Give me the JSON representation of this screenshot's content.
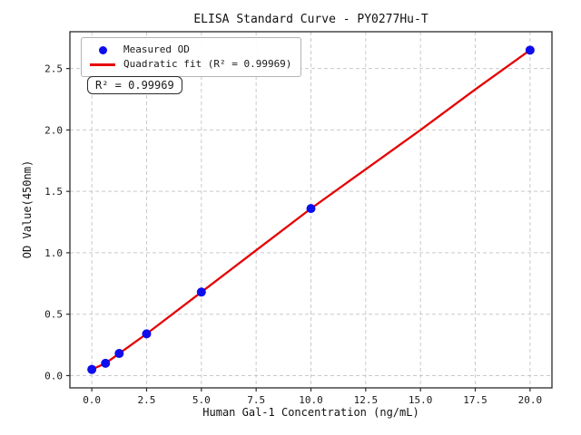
{
  "chart_data": {
    "type": "scatter",
    "title": "ELISA Standard Curve - PY0277Hu-T",
    "xlabel": "Human Gal-1 Concentration (ng/mL)",
    "ylabel": "OD Value(450nm)",
    "xlim": [
      -1,
      21
    ],
    "ylim": [
      -0.1,
      2.8
    ],
    "grid": true,
    "grid_style": "dashed",
    "legend_position": "upper-left",
    "xticks": [
      {
        "value": 0,
        "label": "0.0"
      },
      {
        "value": 2.5,
        "label": "2.5"
      },
      {
        "value": 5,
        "label": "5.0"
      },
      {
        "value": 7.5,
        "label": "7.5"
      },
      {
        "value": 10,
        "label": "10.0"
      },
      {
        "value": 12.5,
        "label": "12.5"
      },
      {
        "value": 15,
        "label": "15.0"
      },
      {
        "value": 17.5,
        "label": "17.5"
      },
      {
        "value": 20,
        "label": "20.0"
      }
    ],
    "yticks": [
      {
        "value": 0,
        "label": "0.0"
      },
      {
        "value": 0.5,
        "label": "0.5"
      },
      {
        "value": 1,
        "label": "1.0"
      },
      {
        "value": 1.5,
        "label": "1.5"
      },
      {
        "value": 2,
        "label": "2.0"
      },
      {
        "value": 2.5,
        "label": "2.5"
      }
    ],
    "series": [
      {
        "name": "Measured OD",
        "type": "scatter",
        "color": "#0d0dee",
        "x": [
          0,
          0.625,
          1.25,
          2.5,
          5,
          10,
          20
        ],
        "y": [
          0.05,
          0.1,
          0.18,
          0.34,
          0.68,
          1.36,
          2.65
        ]
      },
      {
        "name": "Quadratic fit",
        "type": "line",
        "color": "#e60000",
        "x": [
          0,
          0.625,
          1.25,
          2.5,
          5,
          7.5,
          10,
          12.5,
          15,
          17.5,
          20
        ],
        "y": [
          0.05,
          0.1,
          0.18,
          0.34,
          0.68,
          1.02,
          1.36,
          1.68,
          2.0,
          2.33,
          2.65
        ]
      }
    ],
    "legend": {
      "entries": [
        {
          "label": "Measured OD",
          "marker": "dot",
          "color": "#0d0dee"
        },
        {
          "label": "Quadratic fit (R² = 0.99969)",
          "marker": "line",
          "color": "#e60000"
        }
      ]
    },
    "annotation": "R² = 0.99969",
    "r_squared": 0.99969,
    "colors": {
      "background": "#ffffff",
      "grid": "#c9c9c9",
      "spine": "#2b2b2b",
      "tick_text": "#1a1a1a"
    }
  }
}
